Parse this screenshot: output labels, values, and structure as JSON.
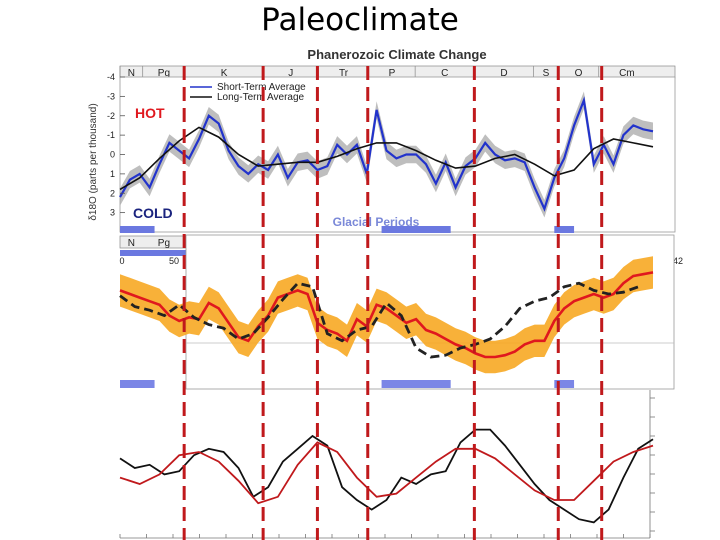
{
  "slide": {
    "title": "Paleoclimate"
  },
  "chart_data": [
    {
      "type": "line",
      "title": "Phanerozoic Climate Change",
      "ylabel": "δ18O (parts per thousand)",
      "ylim": [
        4,
        -4
      ],
      "xlim": [
        0,
        542
      ],
      "hot_label": "HOT",
      "cold_label": "COLD",
      "glacial_label": "Glacial Periods",
      "x_ticks": [
        "0",
        "50",
        "42"
      ],
      "y_ticks": [
        "-4",
        "-3",
        "-2",
        "-1",
        "0",
        "1",
        "2",
        "3"
      ],
      "periods_top": [
        "N",
        "Pg",
        "K",
        "J",
        "Tr",
        "P",
        "C",
        "D",
        "S",
        "O",
        "Cm"
      ],
      "periods_bottom": [
        "N",
        "Pg"
      ],
      "glacial_periods": [
        [
          0,
          35
        ],
        [
          265,
          335
        ],
        [
          440,
          460
        ]
      ],
      "series": [
        {
          "name": "Short-Term Average",
          "color": "#2233cc",
          "x": [
            0,
            10,
            20,
            30,
            40,
            50,
            60,
            70,
            80,
            90,
            100,
            110,
            120,
            130,
            140,
            150,
            160,
            170,
            180,
            190,
            200,
            210,
            220,
            230,
            240,
            250,
            260,
            270,
            280,
            290,
            300,
            310,
            320,
            330,
            340,
            350,
            360,
            370,
            380,
            390,
            400,
            410,
            420,
            430,
            440,
            450,
            460,
            470,
            480,
            490,
            500,
            510,
            520,
            530,
            540
          ],
          "values": [
            2.2,
            1.3,
            1.0,
            1.7,
            0.5,
            -0.6,
            -0.2,
            0.2,
            -0.8,
            -2.0,
            -1.6,
            -0.2,
            0.6,
            1.0,
            0.5,
            0.8,
            0.0,
            1.2,
            0.4,
            0.3,
            0.8,
            0.6,
            -0.5,
            0.0,
            -0.5,
            1.0,
            -2.3,
            -0.2,
            0.2,
            0.0,
            0.0,
            0.5,
            1.5,
            0.4,
            1.7,
            0.6,
            0.2,
            -0.6,
            0.0,
            0.3,
            0.2,
            0.4,
            1.7,
            2.8,
            1.2,
            0.2,
            -1.5,
            -2.8,
            0.5,
            -0.5,
            0.5,
            -1.0,
            -1.5,
            -1.3,
            -1.2
          ]
        },
        {
          "name": "Long-Term Average",
          "color": "#111111",
          "x": [
            0,
            20,
            40,
            60,
            80,
            100,
            120,
            140,
            160,
            180,
            200,
            220,
            240,
            260,
            280,
            300,
            320,
            340,
            360,
            380,
            400,
            420,
            440,
            460,
            480,
            500,
            520,
            540
          ],
          "values": [
            1.8,
            1.2,
            0.2,
            -0.7,
            -1.4,
            -0.9,
            0.0,
            0.6,
            0.5,
            0.4,
            0.4,
            0.1,
            -0.3,
            -0.6,
            -0.6,
            -0.2,
            0.3,
            0.7,
            0.6,
            0.2,
            0.0,
            0.5,
            1.1,
            0.8,
            -0.3,
            -0.8,
            -0.6,
            -0.4
          ]
        }
      ]
    },
    {
      "type": "line",
      "glacial_periods": [
        [
          0,
          35
        ],
        [
          265,
          335
        ],
        [
          440,
          460
        ]
      ],
      "series": [
        {
          "color": "#e0181e",
          "x": [
            0,
            10,
            20,
            30,
            40,
            50,
            60,
            70,
            80,
            90,
            100,
            110,
            120,
            130,
            140,
            150,
            160,
            170,
            180,
            190,
            200,
            210,
            220,
            230,
            240,
            250,
            260,
            270,
            280,
            290,
            300,
            310,
            320,
            330,
            340,
            350,
            360,
            370,
            380,
            390,
            400,
            410,
            420,
            430,
            440,
            450,
            460,
            470,
            480,
            490,
            500,
            510,
            520,
            530,
            540
          ],
          "values": [
            1.2,
            1.0,
            0.8,
            0.6,
            0.4,
            -0.2,
            -0.5,
            -0.3,
            -0.4,
            0.5,
            0.2,
            -0.6,
            -1.4,
            -1.6,
            -0.8,
            -0.2,
            0.8,
            1.0,
            1.2,
            1.0,
            -0.6,
            -1.0,
            -1.2,
            -1.6,
            -0.4,
            -0.8,
            0.4,
            0.2,
            -0.2,
            -0.6,
            -0.4,
            -1.0,
            -1.2,
            -1.5,
            -1.8,
            -2.0,
            -2.3,
            -2.5,
            -2.5,
            -2.4,
            -2.2,
            -1.8,
            -1.6,
            -1.6,
            -0.5,
            0.2,
            0.6,
            0.8,
            1.0,
            0.8,
            1.0,
            1.6,
            2.0,
            2.1,
            2.2
          ]
        },
        {
          "color": "#222222",
          "x": [
            0,
            15,
            30,
            45,
            60,
            75,
            90,
            105,
            120,
            135,
            150,
            165,
            180,
            195,
            210,
            225,
            240,
            255,
            270,
            285,
            300,
            315,
            330,
            345,
            360,
            375,
            390,
            405,
            420,
            435,
            450,
            465,
            480,
            495,
            510,
            525
          ],
          "values": [
            0.9,
            0.3,
            0.1,
            -0.2,
            0.4,
            -0.3,
            -0.7,
            -0.9,
            -1.5,
            -1.2,
            -0.3,
            0.7,
            1.6,
            1.4,
            -1.2,
            -1.6,
            -1.0,
            -0.8,
            0.5,
            -0.2,
            -2.0,
            -2.5,
            -2.4,
            -2.0,
            -1.8,
            -1.5,
            -0.8,
            0.2,
            0.6,
            0.8,
            1.4,
            1.6,
            1.2,
            1.0,
            1.1,
            1.4
          ]
        }
      ]
    },
    {
      "type": "line",
      "series": [
        {
          "color": "#111111",
          "x": [
            0,
            15,
            30,
            45,
            60,
            75,
            90,
            105,
            120,
            135,
            150,
            165,
            180,
            195,
            210,
            225,
            240,
            255,
            270,
            285,
            300,
            315,
            330,
            345,
            360,
            375,
            390,
            405,
            420,
            435,
            450,
            465,
            480,
            495,
            510,
            525,
            540
          ],
          "values": [
            0.3,
            0.0,
            0.1,
            -0.2,
            -0.1,
            0.4,
            0.6,
            0.5,
            0.0,
            -0.9,
            -0.6,
            0.2,
            0.6,
            1.0,
            0.7,
            -0.6,
            -1.0,
            -1.3,
            -1.0,
            -0.3,
            -0.5,
            -0.2,
            -0.1,
            0.8,
            1.2,
            1.2,
            0.7,
            0.1,
            -0.5,
            -1.0,
            -1.3,
            -1.6,
            -1.7,
            -1.3,
            -0.3,
            0.6,
            0.9
          ]
        },
        {
          "color": "#c0191c",
          "x": [
            0,
            20,
            40,
            60,
            80,
            100,
            120,
            140,
            160,
            180,
            200,
            220,
            240,
            260,
            280,
            300,
            320,
            340,
            360,
            380,
            400,
            420,
            440,
            460,
            480,
            500,
            520,
            540
          ],
          "values": [
            -0.3,
            -0.5,
            -0.2,
            0.4,
            0.5,
            0.2,
            -0.4,
            -1.1,
            -0.9,
            0.1,
            0.8,
            0.5,
            -0.3,
            -0.9,
            -0.8,
            -0.3,
            0.2,
            0.6,
            0.6,
            0.3,
            -0.2,
            -0.7,
            -1.0,
            -1.0,
            -0.4,
            0.2,
            0.5,
            0.7
          ]
        }
      ]
    }
  ],
  "markers": {
    "color": "#c0191c",
    "positions_ma": [
      65,
      145,
      200,
      251,
      359,
      444,
      488
    ]
  }
}
